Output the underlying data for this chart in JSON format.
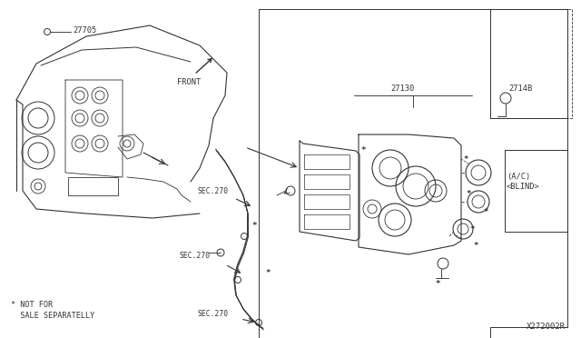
{
  "bg_color": "#ffffff",
  "line_color": "#333333",
  "diagram_id": "X272002R",
  "labels": {
    "part_27705": "27705",
    "part_27130": "27130",
    "part_2714B": "2714B",
    "part_ac_blind": "(A/C)\n<BLIND>",
    "sec270_1": "SEC.270",
    "sec270_2": "SEC.270",
    "sec270_3": "SEC.270",
    "front": "FRONT",
    "not_for_sale_1": "* NOT FOR",
    "not_for_sale_2": "  SALE SEPARATELLY"
  },
  "font_size_label": 6.5,
  "font_size_small": 5.8,
  "font_size_id": 6.5,
  "lw_main": 0.65
}
